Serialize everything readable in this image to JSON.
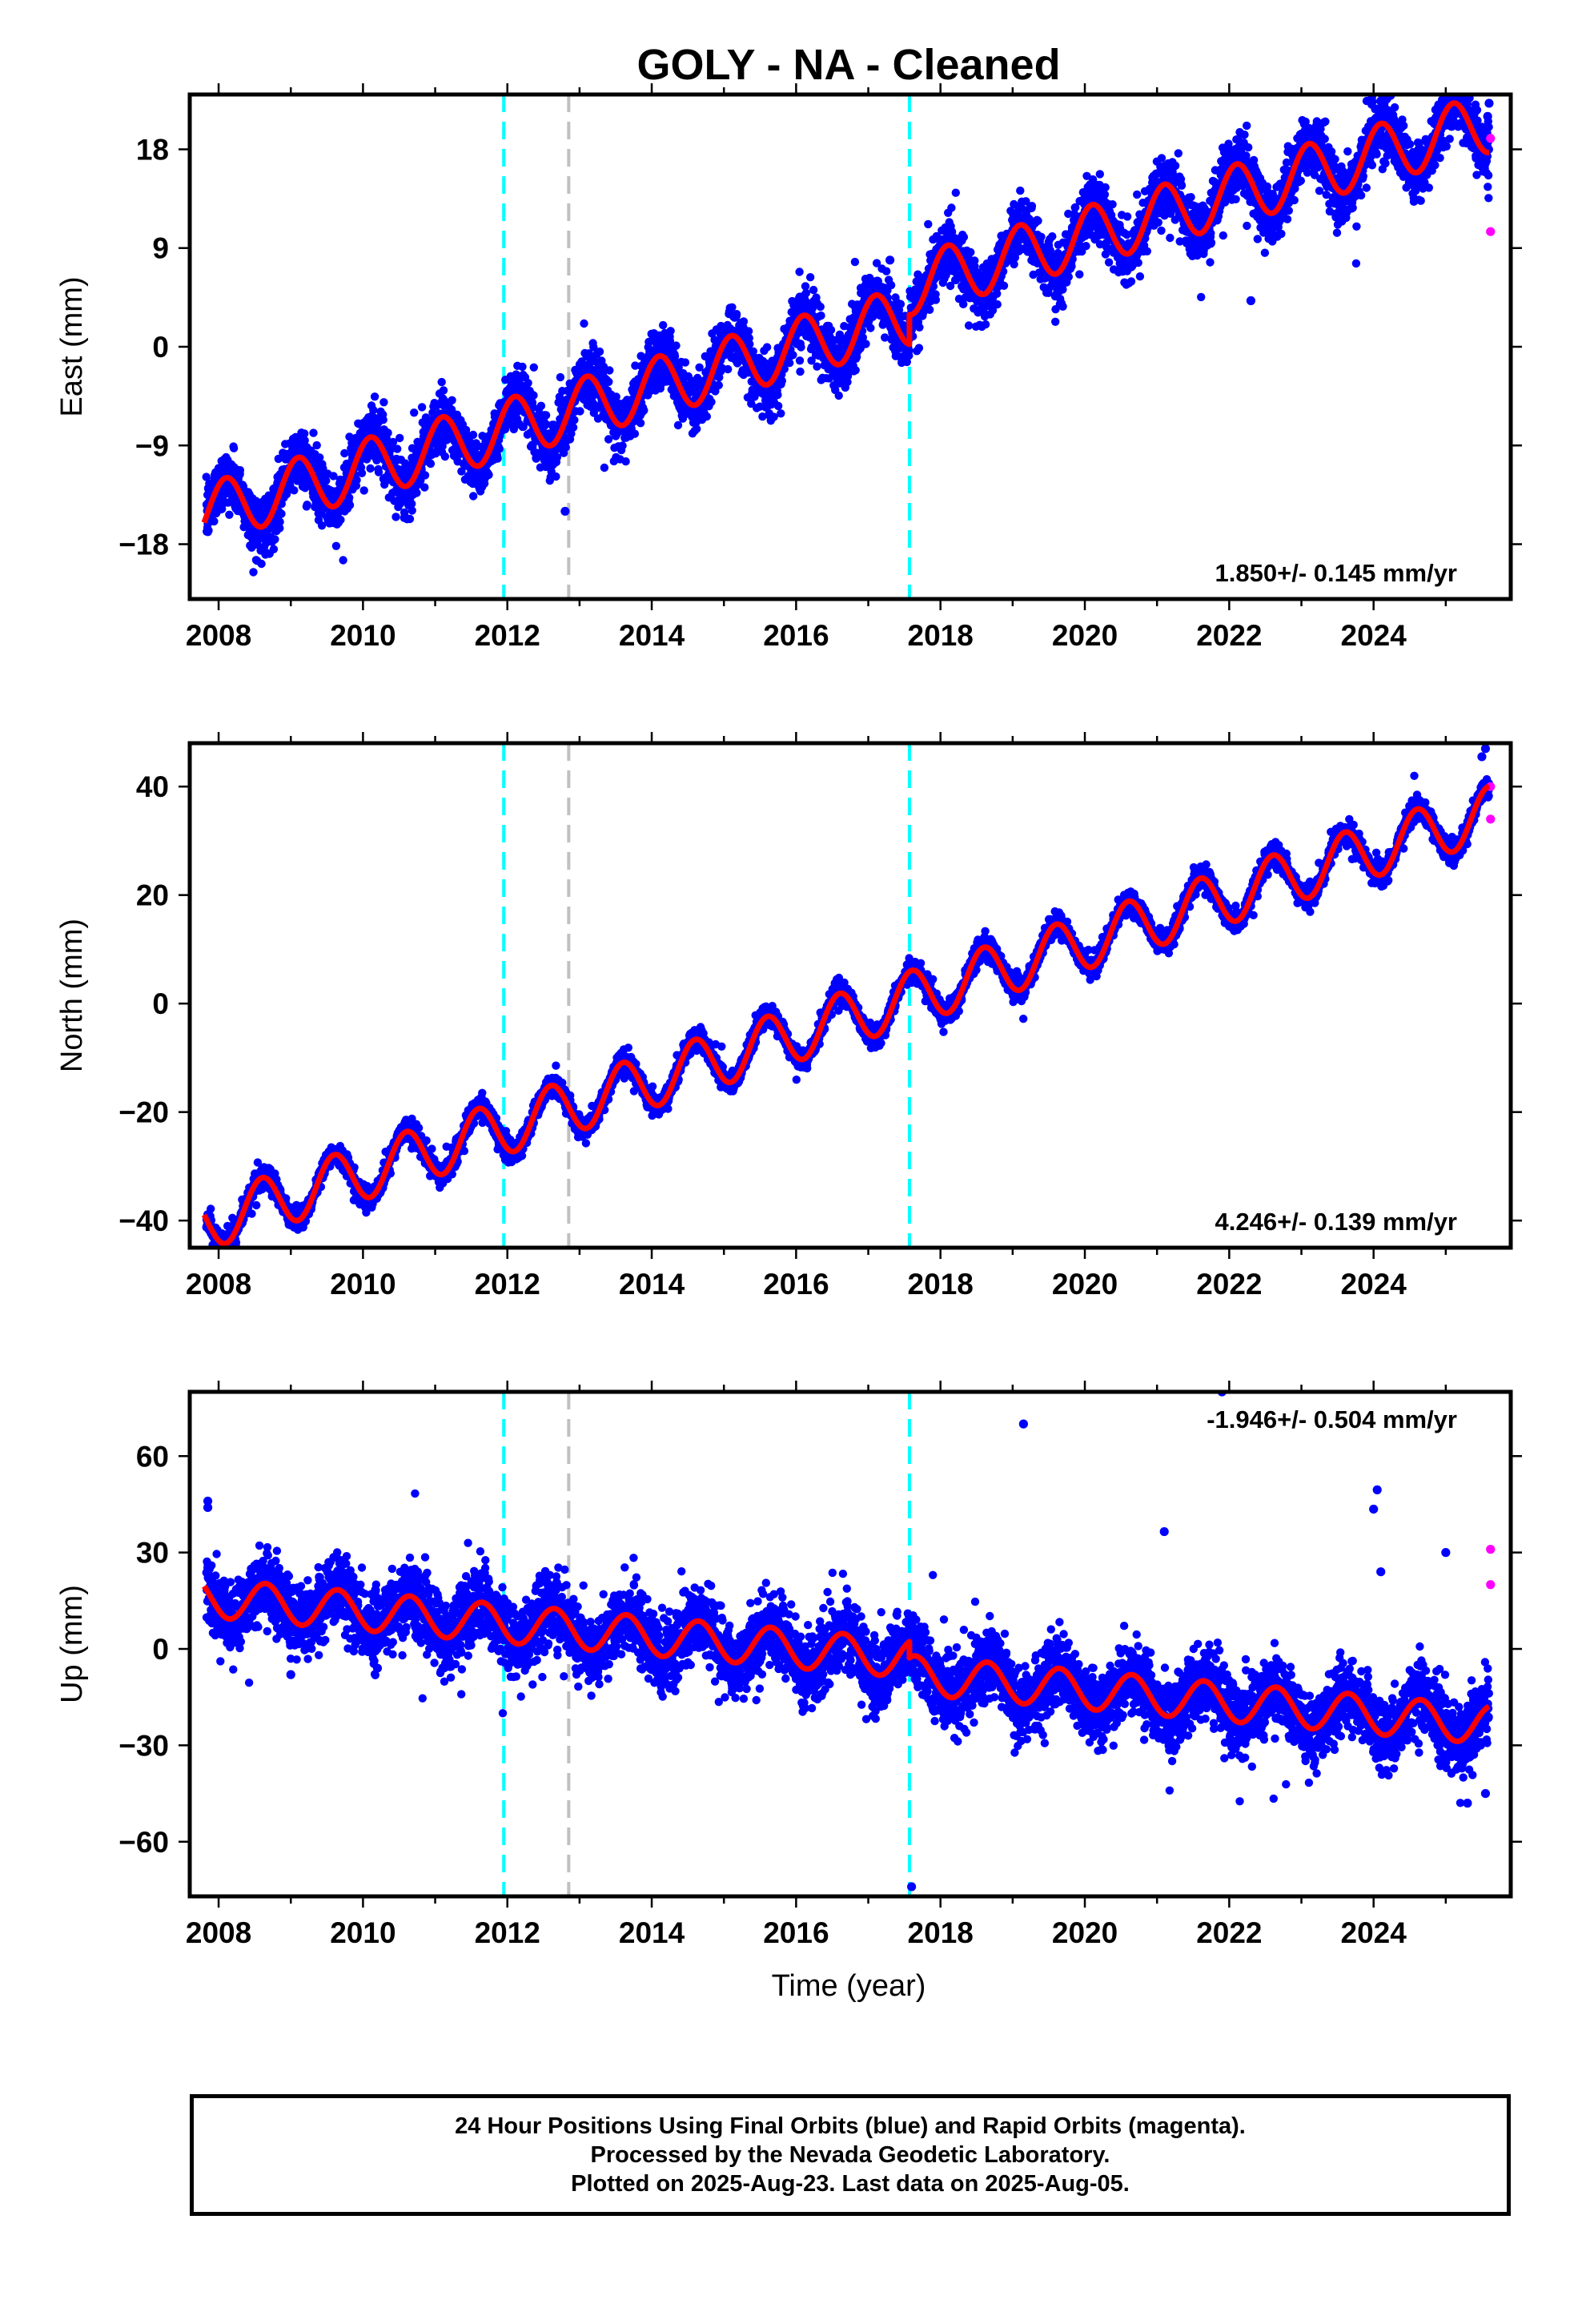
{
  "figure": {
    "title": "GOLY  - NA - Cleaned",
    "xlabel": "Time (year)"
  },
  "caption": {
    "line1": "24 Hour Positions Using Final Orbits (blue) and Rapid Orbits (magenta).",
    "line2": "Processed by the Nevada Geodetic Laboratory.",
    "line3": "Plotted on 2025-Aug-23. Last data on 2025-Aug-05."
  },
  "colors": {
    "final_orbits": "#0000ff",
    "rapid_orbits": "#ff00ff",
    "model_fit": "#ff0000",
    "equipment_change": "#00ffff",
    "earthquake": "#c0c0c0"
  },
  "chart_data": [
    {
      "type": "scatter",
      "panel": "east",
      "ylabel": "East (mm)",
      "rate_label": "1.850+/- 0.145 mm/yr",
      "rate_position": "bottom-right",
      "xlim": [
        2007.6,
        2025.9
      ],
      "ylim": [
        -23,
        23
      ],
      "xticks": [
        2008,
        2010,
        2012,
        2014,
        2016,
        2018,
        2020,
        2022,
        2024
      ],
      "yticks": [
        -18,
        -9,
        0,
        9,
        18
      ],
      "vertical_lines": [
        {
          "x": 2011.95,
          "kind": "equipment_change"
        },
        {
          "x": 2012.85,
          "kind": "earthquake"
        },
        {
          "x": 2017.57,
          "kind": "equipment_change"
        }
      ],
      "fit": {
        "start": 2007.8,
        "end": 2025.6,
        "start_value": -15.2,
        "rate": 1.85,
        "annual_amplitude": 2.7,
        "annual_peak": 2007.1,
        "offsets": [
          {
            "x": 2017.57,
            "size": 2.7
          }
        ]
      },
      "scatter_noise": 1.3,
      "daily_coverage": [
        2007.83,
        2025.6
      ],
      "rapid_points": [
        [
          2025.62,
          19.0
        ],
        [
          2025.62,
          10.5
        ]
      ],
      "outliers": [
        [
          2025.6,
          22.2
        ],
        [
          2025.58,
          21.0
        ],
        [
          2018.0,
          7.5
        ],
        [
          2017.3,
          7.9
        ],
        [
          2012.8,
          -15.0
        ],
        [
          2022.3,
          4.2
        ]
      ]
    },
    {
      "type": "scatter",
      "panel": "north",
      "ylabel": "North (mm)",
      "rate_label": "4.246+/- 0.139 mm/yr",
      "rate_position": "bottom-right",
      "xlim": [
        2007.6,
        2025.9
      ],
      "ylim": [
        -45,
        48
      ],
      "xticks": [
        2008,
        2010,
        2012,
        2014,
        2016,
        2018,
        2020,
        2022,
        2024
      ],
      "yticks": [
        -40,
        -20,
        0,
        20,
        40
      ],
      "vertical_lines": [
        {
          "x": 2011.95,
          "kind": "equipment_change"
        },
        {
          "x": 2012.85,
          "kind": "earthquake"
        },
        {
          "x": 2017.57,
          "kind": "equipment_change"
        }
      ],
      "fit": {
        "start": 2007.8,
        "end": 2025.6,
        "start_value": -40.5,
        "rate": 4.246,
        "annual_amplitude": 5.0,
        "annual_peak": 2007.6,
        "offsets": []
      },
      "scatter_noise": 1.0,
      "daily_coverage": [
        2007.83,
        2025.6
      ],
      "rapid_points": [
        [
          2025.62,
          40.0
        ],
        [
          2025.62,
          34.0
        ]
      ],
      "outliers": [
        [
          2025.55,
          47.0
        ],
        [
          2025.5,
          45.5
        ]
      ]
    },
    {
      "type": "scatter",
      "panel": "up",
      "ylabel": "Up (mm)",
      "rate_label": "-1.946+/- 0.504 mm/yr",
      "rate_position": "top-right",
      "xlim": [
        2007.6,
        2025.9
      ],
      "ylim": [
        -77,
        80
      ],
      "xticks": [
        2008,
        2010,
        2012,
        2014,
        2016,
        2018,
        2020,
        2022,
        2024
      ],
      "yticks": [
        -60,
        -30,
        0,
        30,
        60
      ],
      "vertical_lines": [
        {
          "x": 2011.95,
          "kind": "equipment_change"
        },
        {
          "x": 2012.85,
          "kind": "earthquake"
        },
        {
          "x": 2017.57,
          "kind": "equipment_change"
        }
      ],
      "fit": {
        "start": 2007.8,
        "end": 2025.6,
        "start_value": 16.0,
        "rate": -1.946,
        "annual_amplitude": 6.0,
        "annual_peak": 2007.65,
        "offsets": [
          {
            "x": 2017.57,
            "size": -5.0
          }
        ]
      },
      "scatter_noise": 5.5,
      "daily_coverage": [
        2007.83,
        2025.6
      ],
      "rapid_points": [
        [
          2025.62,
          31.0
        ],
        [
          2025.62,
          20.0
        ]
      ],
      "outliers": [
        [
          2007.85,
          46.0
        ],
        [
          2007.85,
          44.0
        ],
        [
          2019.15,
          70.0
        ],
        [
          2021.1,
          36.5
        ],
        [
          2021.9,
          80.0
        ],
        [
          2024.05,
          49.5
        ],
        [
          2024.0,
          43.5
        ],
        [
          2024.1,
          24.0
        ],
        [
          2025.0,
          30.0
        ],
        [
          2025.3,
          -48.0
        ],
        [
          2025.55,
          -45.0
        ],
        [
          2017.6,
          -74.0
        ],
        [
          2009.0,
          -8.0
        ],
        [
          2010.2,
          -6.0
        ]
      ]
    }
  ]
}
